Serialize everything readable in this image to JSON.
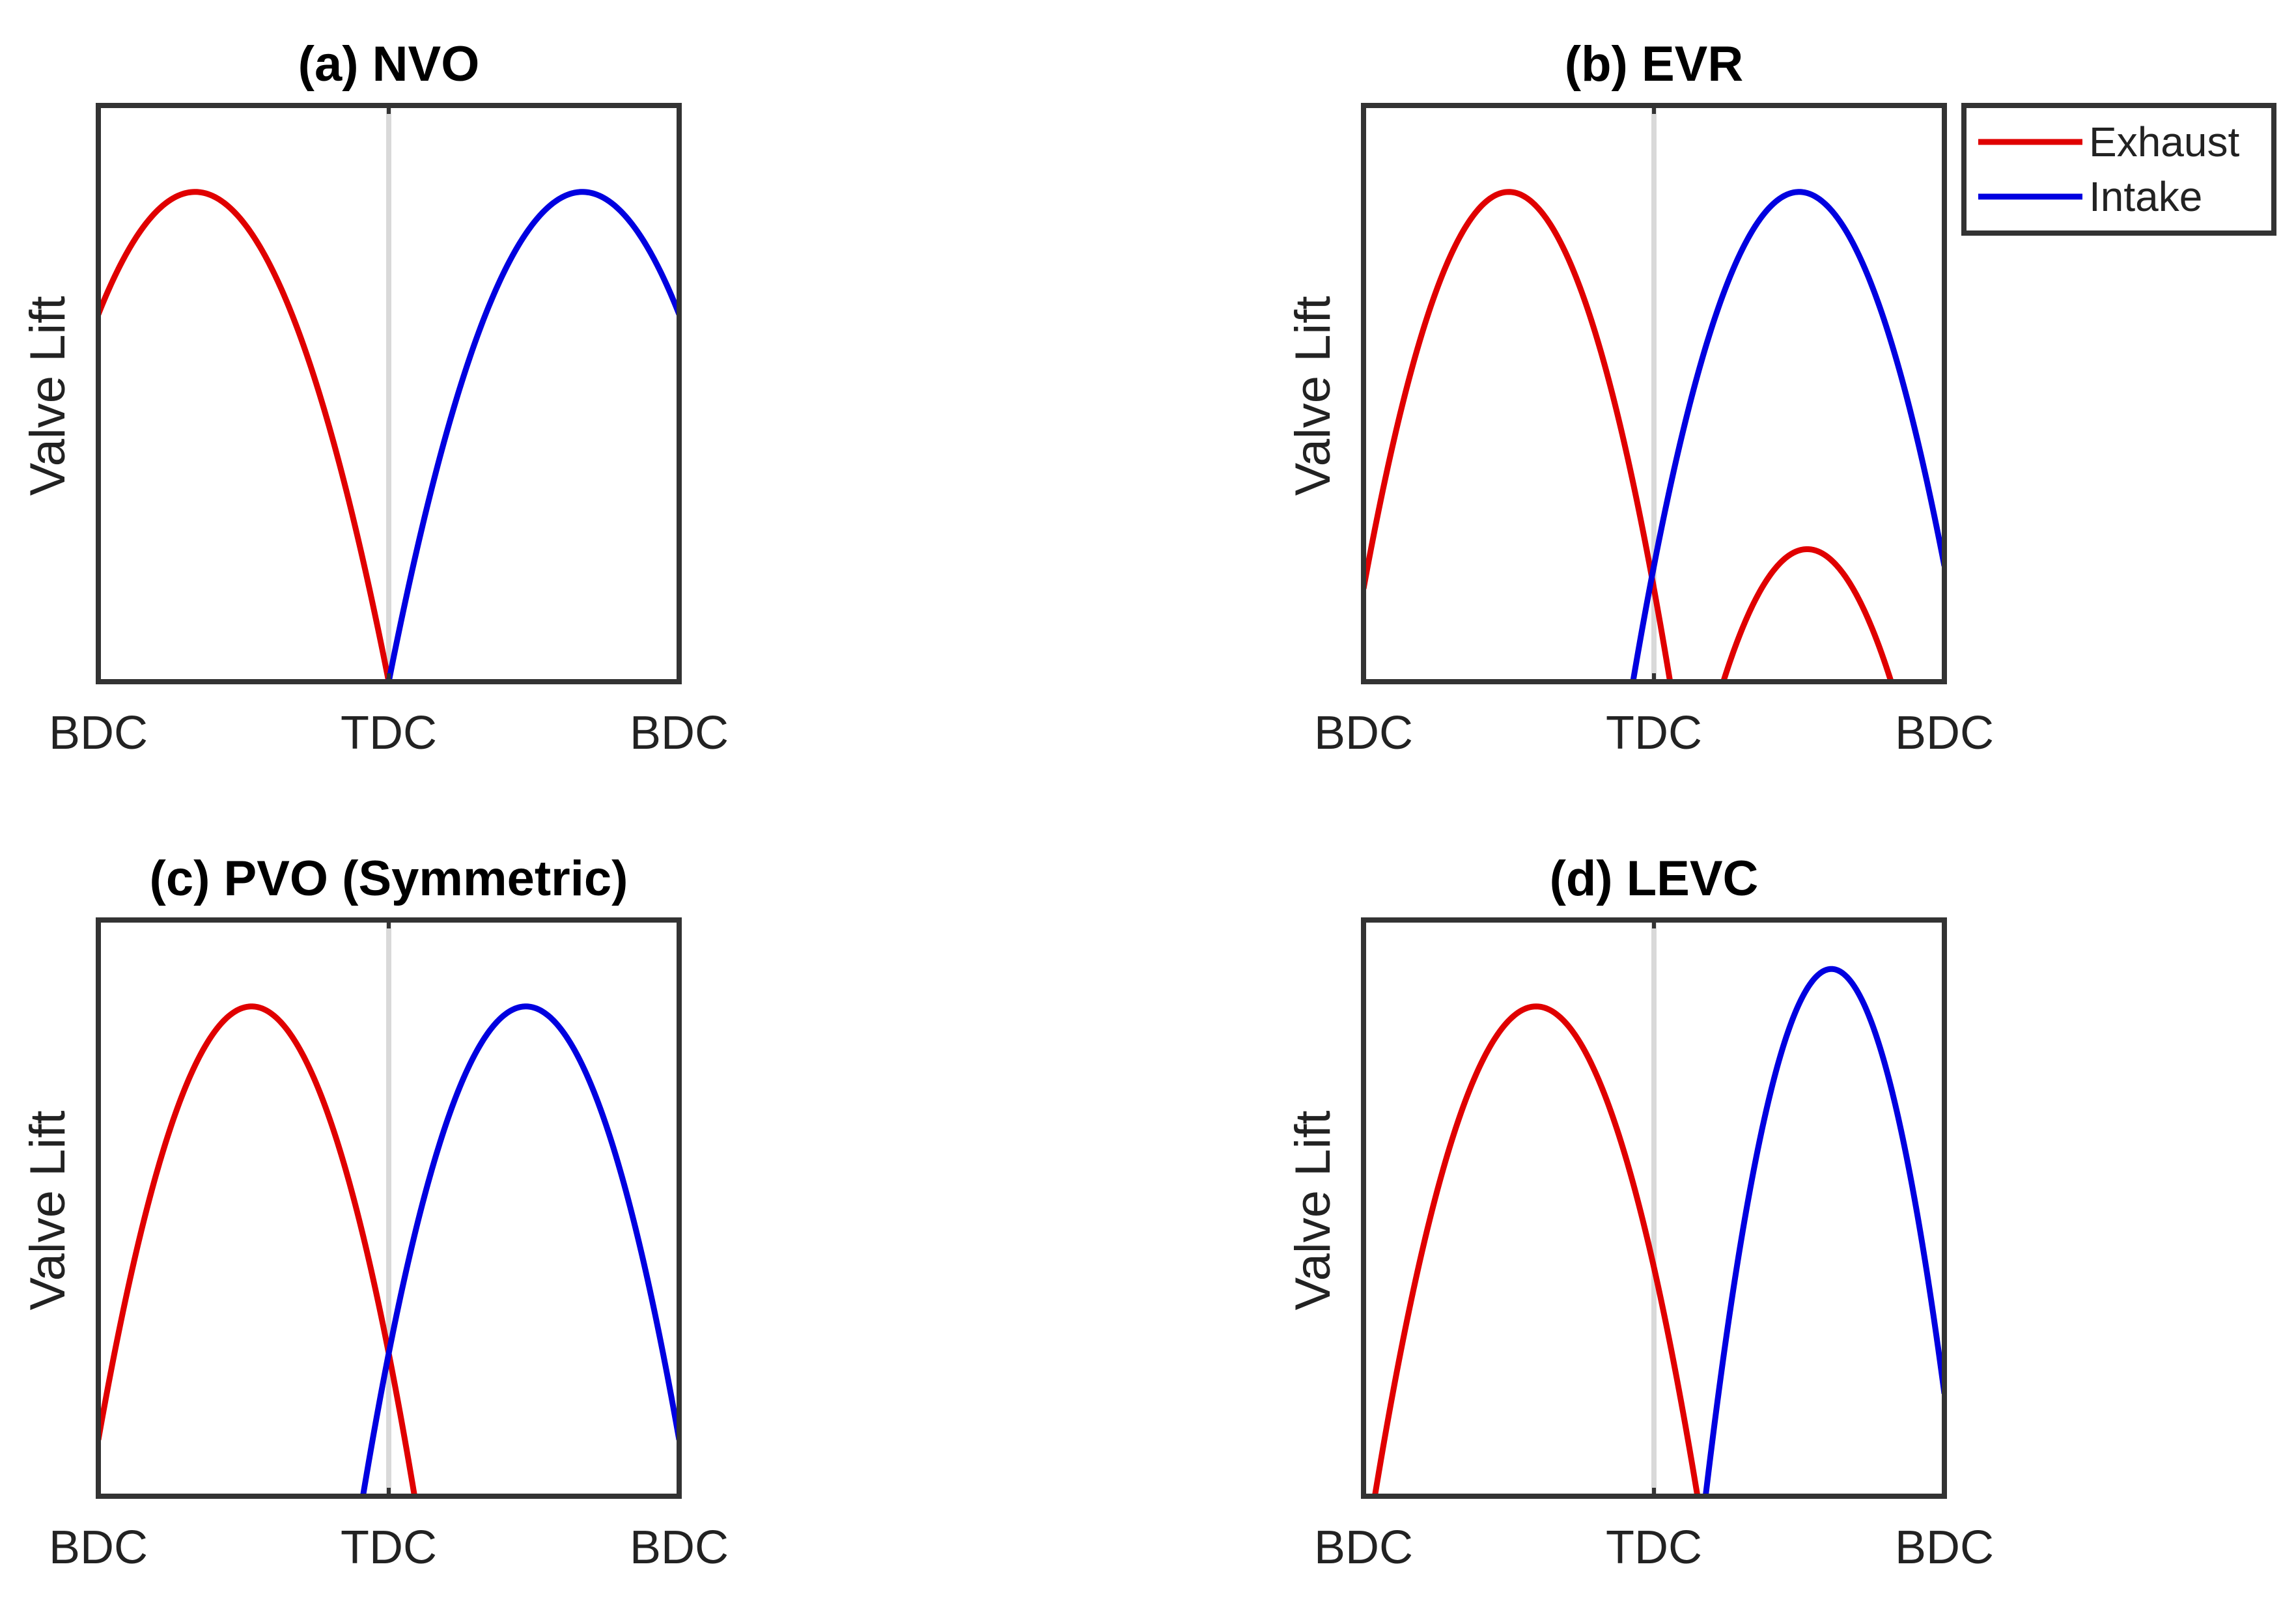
{
  "figure": {
    "colors": {
      "exhaust": "#e00000",
      "intake": "#0000e0",
      "tdc_line": "#d9d9d9",
      "axes": "#333333"
    },
    "legend": {
      "items": [
        {
          "label": "Exhaust",
          "color": "#e00000"
        },
        {
          "label": "Intake",
          "color": "#0000e0"
        }
      ]
    }
  },
  "chart_data": [
    {
      "type": "line",
      "title": "(a) NVO",
      "ylabel": "Valve Lift",
      "xlabel": "",
      "x_tick_labels": [
        "BDC",
        "TDC",
        "BDC"
      ],
      "xlim": [
        -180,
        180
      ],
      "ylim": [
        0,
        1
      ],
      "series": [
        {
          "name": "Exhaust",
          "peak_crank_deg": -120,
          "peak_lift": 0.85,
          "half_duration_deg": 120
        },
        {
          "name": "Intake",
          "peak_crank_deg": 120,
          "peak_lift": 0.85,
          "half_duration_deg": 120
        }
      ]
    },
    {
      "type": "line",
      "title": "(b) EVR",
      "ylabel": "Valve Lift",
      "xlabel": "",
      "x_tick_labels": [
        "BDC",
        "TDC",
        "BDC"
      ],
      "xlim": [
        -180,
        180
      ],
      "ylim": [
        0,
        1
      ],
      "series": [
        {
          "name": "Exhaust",
          "peak_crank_deg": -90,
          "peak_lift": 0.85,
          "half_duration_deg": 100
        },
        {
          "name": "Intake",
          "peak_crank_deg": 90,
          "peak_lift": 0.85,
          "half_duration_deg": 103
        },
        {
          "name": "Exhaust (re-open)",
          "peak_crank_deg": 95,
          "peak_lift": 0.23,
          "half_duration_deg": 52
        }
      ]
    },
    {
      "type": "line",
      "title": "(c) PVO (Symmetric)",
      "ylabel": "Valve Lift",
      "xlabel": "",
      "x_tick_labels": [
        "BDC",
        "TDC",
        "BDC"
      ],
      "xlim": [
        -180,
        180
      ],
      "ylim": [
        0,
        1
      ],
      "series": [
        {
          "name": "Exhaust",
          "peak_crank_deg": -85,
          "peak_lift": 0.85,
          "half_duration_deg": 101
        },
        {
          "name": "Intake",
          "peak_crank_deg": 85,
          "peak_lift": 0.85,
          "half_duration_deg": 101
        }
      ]
    },
    {
      "type": "line",
      "title": "(d) LEVC",
      "ylabel": "Valve Lift",
      "xlabel": "",
      "x_tick_labels": [
        "BDC",
        "TDC",
        "BDC"
      ],
      "xlim": [
        -180,
        180
      ],
      "ylim": [
        0,
        1
      ],
      "series": [
        {
          "name": "Exhaust",
          "peak_crank_deg": -73,
          "peak_lift": 0.85,
          "half_duration_deg": 100
        },
        {
          "name": "Intake",
          "peak_crank_deg": 110,
          "peak_lift": 0.915,
          "half_duration_deg": 78
        }
      ]
    }
  ]
}
